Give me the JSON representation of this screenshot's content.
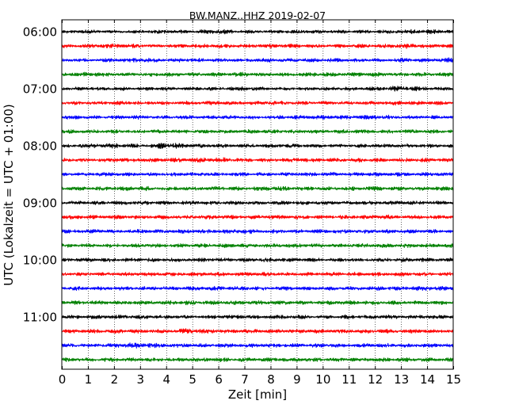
{
  "chart_data": {
    "type": "line",
    "title": "BW.MANZ..HHZ 2019-02-07",
    "xlabel": "Zeit  [min]",
    "ylabel": "UTC (Lokalzeit = UTC + 01:00)",
    "xlim": [
      0,
      15
    ],
    "x_ticks": [
      "0",
      "1",
      "2",
      "3",
      "4",
      "5",
      "6",
      "7",
      "8",
      "9",
      "10",
      "11",
      "12",
      "13",
      "14",
      "15"
    ],
    "y_tick_labels": [
      "06:00",
      "07:00",
      "08:00",
      "09:00",
      "10:00",
      "11:00"
    ],
    "grid": "vertical dotted at each minute",
    "trace_colors": [
      "#000000",
      "#ff0000",
      "#0000ff",
      "#008000"
    ],
    "segment_minutes": 15,
    "series": [
      {
        "start": "06:00",
        "values": [
          0.33,
          0.42,
          0.3,
          0.38,
          0.45,
          0.35,
          0.6,
          0.4,
          0.37,
          0.43,
          0.39,
          0.41,
          0.36,
          0.55,
          0.48,
          0.4
        ]
      },
      {
        "start": "06:15",
        "values": [
          0.45,
          0.4,
          0.5,
          0.42,
          0.38,
          0.44,
          0.47,
          0.41,
          0.52,
          0.43,
          0.39,
          0.46,
          0.42,
          0.6,
          0.44,
          0.4
        ]
      },
      {
        "start": "06:30",
        "values": [
          0.4,
          0.36,
          0.44,
          0.58,
          0.4,
          0.48,
          0.42,
          0.38,
          0.45,
          0.41,
          0.5,
          0.39,
          0.43,
          0.47,
          0.4,
          0.62
        ]
      },
      {
        "start": "06:45",
        "values": [
          0.42,
          0.55,
          0.4,
          0.45,
          0.48,
          0.42,
          0.46,
          0.5,
          0.41,
          0.44,
          0.47,
          0.43,
          0.52,
          0.45,
          0.48,
          0.42
        ]
      },
      {
        "start": "07:00",
        "values": [
          0.38,
          0.4,
          0.45,
          0.36,
          0.42,
          0.39,
          0.41,
          0.52,
          0.4,
          0.37,
          0.44,
          0.4,
          0.43,
          0.66,
          0.45,
          0.39
        ]
      },
      {
        "start": "07:15",
        "values": [
          0.4,
          0.38,
          0.44,
          0.42,
          0.4,
          0.46,
          0.43,
          0.39,
          0.48,
          0.41,
          0.42,
          0.4,
          0.45,
          0.5,
          0.43,
          0.4
        ]
      },
      {
        "start": "07:30",
        "values": [
          0.5,
          0.4,
          0.42,
          0.47,
          0.39,
          0.43,
          0.45,
          0.41,
          0.4,
          0.44,
          0.48,
          0.42,
          0.58,
          0.43,
          0.41,
          0.39
        ]
      },
      {
        "start": "07:45",
        "values": [
          0.4,
          0.44,
          0.42,
          0.41,
          0.45,
          0.43,
          0.4,
          0.46,
          0.42,
          0.44,
          0.41,
          0.47,
          0.43,
          0.42,
          0.45,
          0.4
        ]
      },
      {
        "start": "08:00",
        "values": [
          0.45,
          0.48,
          0.7,
          0.42,
          0.72,
          0.44,
          0.45,
          0.4,
          0.43,
          0.46,
          0.41,
          0.44,
          0.42,
          0.45,
          0.43,
          0.41
        ]
      },
      {
        "start": "08:15",
        "values": [
          0.42,
          0.45,
          0.5,
          0.43,
          0.46,
          0.48,
          0.6,
          0.44,
          0.42,
          0.52,
          0.45,
          0.43,
          0.5,
          0.44,
          0.46,
          0.43
        ]
      },
      {
        "start": "08:30",
        "values": [
          0.4,
          0.42,
          0.48,
          0.41,
          0.43,
          0.45,
          0.42,
          0.44,
          0.41,
          0.43,
          0.46,
          0.42,
          0.45,
          0.43,
          0.47,
          0.41
        ]
      },
      {
        "start": "08:45",
        "values": [
          0.45,
          0.42,
          0.46,
          0.5,
          0.44,
          0.43,
          0.47,
          0.45,
          0.52,
          0.44,
          0.46,
          0.43,
          0.48,
          0.45,
          0.44,
          0.46
        ]
      },
      {
        "start": "09:00",
        "values": [
          0.42,
          0.4,
          0.44,
          0.46,
          0.42,
          0.45,
          0.43,
          0.44,
          0.42,
          0.45,
          0.43,
          0.46,
          0.42,
          0.44,
          0.43,
          0.45
        ]
      },
      {
        "start": "09:15",
        "values": [
          0.44,
          0.47,
          0.45,
          0.43,
          0.46,
          0.44,
          0.48,
          0.45,
          0.47,
          0.44,
          0.46,
          0.43,
          0.52,
          0.46,
          0.44,
          0.45
        ]
      },
      {
        "start": "09:30",
        "values": [
          0.42,
          0.46,
          0.43,
          0.45,
          0.42,
          0.47,
          0.44,
          0.58,
          0.43,
          0.45,
          0.44,
          0.46,
          0.43,
          0.45,
          0.44,
          0.42
        ]
      },
      {
        "start": "09:45",
        "values": [
          0.44,
          0.42,
          0.45,
          0.47,
          0.43,
          0.46,
          0.44,
          0.45,
          0.43,
          0.46,
          0.44,
          0.42,
          0.47,
          0.44,
          0.45,
          0.43
        ]
      },
      {
        "start": "10:00",
        "values": [
          0.4,
          0.45,
          0.43,
          0.42,
          0.44,
          0.46,
          0.43,
          0.45,
          0.5,
          0.44,
          0.42,
          0.45,
          0.43,
          0.44,
          0.46,
          0.42
        ]
      },
      {
        "start": "10:15",
        "values": [
          0.42,
          0.44,
          0.43,
          0.46,
          0.44,
          0.42,
          0.45,
          0.43,
          0.47,
          0.44,
          0.46,
          0.43,
          0.44,
          0.45,
          0.43,
          0.44
        ]
      },
      {
        "start": "10:30",
        "values": [
          0.45,
          0.43,
          0.46,
          0.44,
          0.45,
          0.43,
          0.46,
          0.44,
          0.42,
          0.45,
          0.47,
          0.44,
          0.46,
          0.43,
          0.55,
          0.44
        ]
      },
      {
        "start": "10:45",
        "values": [
          0.48,
          0.5,
          0.44,
          0.46,
          0.43,
          0.55,
          0.45,
          0.44,
          0.46,
          0.43,
          0.45,
          0.47,
          0.44,
          0.46,
          0.45,
          0.43
        ]
      },
      {
        "start": "11:00",
        "values": [
          0.42,
          0.44,
          0.45,
          0.43,
          0.46,
          0.44,
          0.43,
          0.48,
          0.44,
          0.45,
          0.43,
          0.46,
          0.44,
          0.45,
          0.43,
          0.44
        ]
      },
      {
        "start": "11:15",
        "values": [
          0.45,
          0.43,
          0.46,
          0.44,
          0.45,
          0.62,
          0.46,
          0.44,
          0.45,
          0.43,
          0.46,
          0.44,
          0.5,
          0.45,
          0.43,
          0.44
        ]
      },
      {
        "start": "11:30",
        "values": [
          0.44,
          0.46,
          0.45,
          0.7,
          0.44,
          0.46,
          0.43,
          0.45,
          0.47,
          0.44,
          0.45,
          0.43,
          0.46,
          0.44,
          0.45,
          0.43
        ]
      },
      {
        "start": "11:45",
        "values": [
          0.46,
          0.44,
          0.45,
          0.43,
          0.46,
          0.44,
          0.45,
          0.47,
          0.44,
          0.46,
          0.45,
          0.43,
          0.46,
          0.44,
          0.45,
          0.44
        ]
      }
    ]
  }
}
